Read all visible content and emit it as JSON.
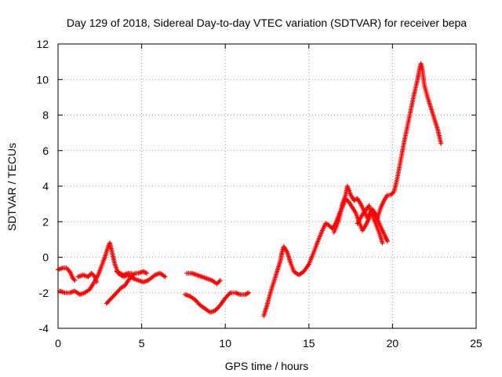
{
  "chart_data": {
    "type": "scatter",
    "title": "Day 129 of 2018, Sidereal Day-to-day VTEC variation (SDTVAR) for receiver bepa",
    "xlabel": "GPS time / hours",
    "ylabel": "SDTVAR / TECUs",
    "xlim": [
      0,
      25
    ],
    "ylim": [
      -4,
      12
    ],
    "xticks": [
      "0",
      "5",
      "10",
      "15",
      "20",
      "25"
    ],
    "yticks": [
      "-4",
      "-2",
      "0",
      "2",
      "4",
      "6",
      "8",
      "10",
      "12"
    ],
    "grid": true,
    "marker": "plus",
    "color": "#ff0000",
    "segments": [
      [
        [
          0.0,
          -0.7
        ],
        [
          0.3,
          -0.6
        ],
        [
          0.5,
          -0.6
        ],
        [
          0.7,
          -0.8
        ],
        [
          0.9,
          -1.2
        ],
        [
          1.0,
          -1.3
        ]
      ],
      [
        [
          0.1,
          -1.9
        ],
        [
          0.4,
          -2.0
        ],
        [
          0.7,
          -2.0
        ],
        [
          1.0,
          -1.9
        ],
        [
          1.3,
          -2.1
        ],
        [
          1.6,
          -2.0
        ],
        [
          1.9,
          -1.8
        ],
        [
          2.1,
          -1.5
        ],
        [
          2.4,
          -1.0
        ],
        [
          2.6,
          -0.5
        ],
        [
          2.8,
          0.0
        ],
        [
          3.0,
          0.6
        ],
        [
          3.1,
          0.8
        ],
        [
          3.2,
          0.4
        ],
        [
          3.4,
          -0.4
        ],
        [
          3.6,
          -0.9
        ],
        [
          3.9,
          -1.1
        ],
        [
          4.2,
          -1.0
        ],
        [
          4.5,
          -1.2
        ],
        [
          4.8,
          -1.3
        ],
        [
          5.1,
          -1.4
        ],
        [
          5.4,
          -1.3
        ],
        [
          5.8,
          -1.0
        ],
        [
          6.1,
          -0.9
        ],
        [
          6.4,
          -1.1
        ]
      ],
      [
        [
          1.2,
          -1.1
        ],
        [
          1.5,
          -1.0
        ],
        [
          1.8,
          -1.1
        ],
        [
          2.0,
          -0.9
        ],
        [
          2.2,
          -1.1
        ],
        [
          2.3,
          -1.4
        ]
      ],
      [
        [
          2.9,
          -2.6
        ],
        [
          3.2,
          -2.3
        ],
        [
          3.5,
          -2.0
        ],
        [
          3.8,
          -1.7
        ],
        [
          4.0,
          -1.6
        ],
        [
          4.2,
          -1.3
        ],
        [
          4.4,
          -1.1
        ],
        [
          4.6,
          -0.9
        ],
        [
          4.8,
          -0.9
        ],
        [
          5.1,
          -0.8
        ],
        [
          5.3,
          -0.9
        ]
      ],
      [
        [
          3.5,
          -0.8
        ],
        [
          3.7,
          -0.9
        ],
        [
          3.9,
          -1.0
        ],
        [
          4.2,
          -0.9
        ],
        [
          4.4,
          -0.9
        ]
      ],
      [
        [
          7.7,
          -0.9
        ],
        [
          8.0,
          -0.9
        ],
        [
          8.3,
          -1.0
        ],
        [
          8.6,
          -1.1
        ],
        [
          8.9,
          -1.2
        ],
        [
          9.2,
          -1.3
        ],
        [
          9.5,
          -1.5
        ],
        [
          9.7,
          -1.3
        ]
      ],
      [
        [
          7.6,
          -2.1
        ],
        [
          7.9,
          -2.2
        ],
        [
          8.2,
          -2.4
        ],
        [
          8.5,
          -2.7
        ],
        [
          8.8,
          -2.9
        ],
        [
          9.1,
          -3.1
        ],
        [
          9.4,
          -3.0
        ],
        [
          9.7,
          -2.7
        ],
        [
          10.0,
          -2.3
        ],
        [
          10.3,
          -2.0
        ],
        [
          10.6,
          -2.0
        ],
        [
          10.9,
          -2.1
        ],
        [
          11.2,
          -2.1
        ],
        [
          11.4,
          -2.0
        ]
      ],
      [
        [
          12.3,
          -3.3
        ],
        [
          12.5,
          -2.7
        ],
        [
          12.7,
          -2.0
        ],
        [
          12.9,
          -1.4
        ],
        [
          13.1,
          -0.8
        ],
        [
          13.3,
          -0.2
        ],
        [
          13.4,
          0.3
        ],
        [
          13.5,
          0.6
        ],
        [
          13.7,
          0.3
        ],
        [
          13.9,
          -0.3
        ],
        [
          14.1,
          -0.8
        ],
        [
          14.4,
          -1.0
        ],
        [
          14.7,
          -0.8
        ],
        [
          15.0,
          -0.4
        ],
        [
          15.3,
          0.3
        ],
        [
          15.5,
          0.8
        ],
        [
          15.8,
          1.5
        ],
        [
          16.0,
          1.9
        ],
        [
          16.2,
          1.8
        ],
        [
          16.4,
          1.6
        ],
        [
          16.6,
          1.9
        ],
        [
          16.8,
          2.4
        ],
        [
          17.0,
          2.8
        ],
        [
          17.2,
          3.3
        ],
        [
          17.4,
          3.1
        ],
        [
          17.6,
          2.8
        ],
        [
          17.8,
          2.5
        ],
        [
          18.0,
          2.0
        ],
        [
          18.2,
          1.5
        ],
        [
          18.4,
          1.8
        ],
        [
          18.6,
          2.2
        ],
        [
          18.8,
          2.7
        ],
        [
          19.0,
          2.4
        ],
        [
          19.2,
          1.9
        ],
        [
          19.4,
          1.5
        ],
        [
          19.6,
          1.1
        ],
        [
          19.7,
          0.9
        ]
      ],
      [
        [
          16.5,
          1.4
        ],
        [
          16.8,
          2.1
        ],
        [
          17.0,
          3.0
        ],
        [
          17.2,
          3.5
        ],
        [
          17.3,
          4.0
        ],
        [
          17.5,
          3.5
        ],
        [
          17.7,
          3.2
        ],
        [
          17.9,
          3.3
        ],
        [
          18.1,
          3.0
        ],
        [
          18.3,
          2.6
        ],
        [
          18.5,
          2.2
        ],
        [
          18.7,
          2.6
        ],
        [
          18.9,
          2.5
        ],
        [
          19.1,
          2.2
        ],
        [
          19.3,
          2.8
        ],
        [
          19.5,
          3.2
        ],
        [
          19.7,
          3.5
        ],
        [
          19.9,
          3.5
        ],
        [
          20.1,
          3.7
        ],
        [
          20.3,
          4.5
        ],
        [
          20.5,
          5.5
        ],
        [
          20.7,
          6.5
        ],
        [
          20.9,
          7.4
        ],
        [
          21.1,
          8.3
        ],
        [
          21.3,
          9.2
        ],
        [
          21.5,
          10.0
        ],
        [
          21.6,
          10.5
        ],
        [
          21.7,
          10.9
        ],
        [
          21.8,
          10.5
        ],
        [
          21.9,
          9.7
        ],
        [
          22.1,
          9.0
        ],
        [
          22.3,
          8.4
        ],
        [
          22.5,
          7.8
        ],
        [
          22.7,
          7.2
        ],
        [
          22.9,
          6.4
        ]
      ],
      [
        [
          17.9,
          1.9
        ],
        [
          18.2,
          2.4
        ],
        [
          18.6,
          2.9
        ],
        [
          18.9,
          2.1
        ],
        [
          19.2,
          1.4
        ],
        [
          19.4,
          0.8
        ]
      ]
    ]
  }
}
